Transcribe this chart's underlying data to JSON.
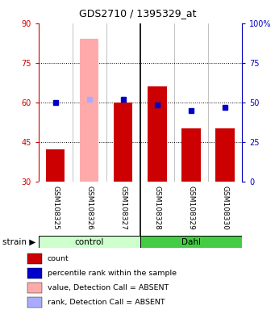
{
  "title": "GDS2710 / 1395329_at",
  "samples": [
    "GSM108325",
    "GSM108326",
    "GSM108327",
    "GSM108328",
    "GSM108329",
    "GSM108330"
  ],
  "groups": [
    "control",
    "control",
    "control",
    "Dahl",
    "Dahl",
    "Dahl"
  ],
  "red_values": [
    42,
    84,
    60,
    66,
    50,
    50
  ],
  "blue_values": [
    60,
    61,
    61,
    59,
    57,
    58
  ],
  "absent_red": [
    false,
    true,
    false,
    false,
    false,
    false
  ],
  "absent_blue": [
    false,
    true,
    false,
    false,
    false,
    false
  ],
  "ylim_left": [
    30,
    90
  ],
  "ylim_right": [
    0,
    100
  ],
  "yticks_left": [
    30,
    45,
    60,
    75,
    90
  ],
  "yticks_right": [
    0,
    25,
    50,
    75,
    100
  ],
  "ytick_labels_right": [
    "0",
    "25",
    "50",
    "75",
    "100%"
  ],
  "bar_bottom": 30,
  "red_color": "#cc0000",
  "red_absent_color": "#ffaaaa",
  "blue_color": "#0000cc",
  "blue_absent_color": "#aaaaff",
  "label_color_left": "#cc0000",
  "label_color_right": "#0000bb",
  "bg_color": "#cccccc",
  "control_color_light": "#ccffcc",
  "dahl_color": "#44cc44",
  "legend_labels": [
    "count",
    "percentile rank within the sample",
    "value, Detection Call = ABSENT",
    "rank, Detection Call = ABSENT"
  ],
  "legend_colors": [
    "#cc0000",
    "#0000cc",
    "#ffaaaa",
    "#aaaaff"
  ]
}
